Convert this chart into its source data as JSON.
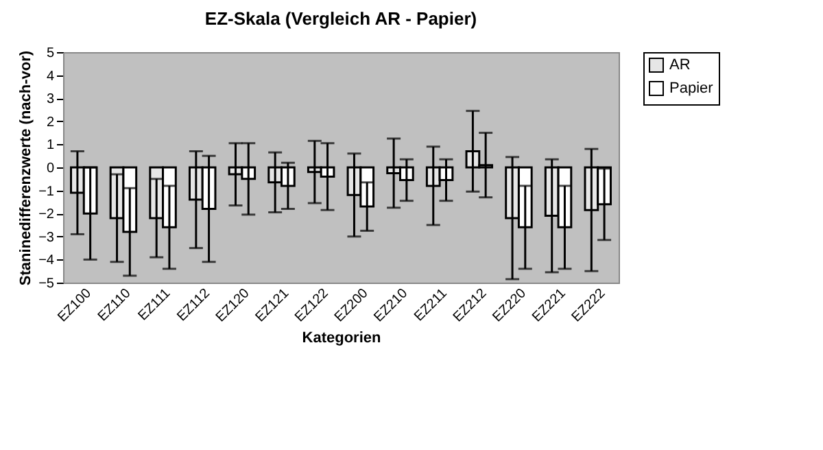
{
  "chart_data": {
    "type": "bar",
    "title": "EZ-Skala (Vergleich AR  - Papier)",
    "xlabel": "Kategorien",
    "ylabel": "Staninedifferenzwerte (nach-vor)",
    "categories": [
      "EZ100",
      "EZ110",
      "EZ111",
      "EZ112",
      "EZ120",
      "EZ121",
      "EZ122",
      "EZ200",
      "EZ210",
      "EZ211",
      "EZ212",
      "EZ220",
      "EZ221",
      "EZ222"
    ],
    "series": [
      {
        "name": "AR",
        "color": "#e6e6e6",
        "values": [
          -1.1,
          -2.2,
          -2.2,
          -1.4,
          -0.3,
          -0.65,
          -0.2,
          -1.2,
          -0.25,
          -0.8,
          0.7,
          -2.2,
          -2.1,
          -1.85
        ],
        "errors": [
          1.8,
          1.9,
          1.7,
          2.1,
          1.35,
          1.3,
          1.35,
          1.8,
          1.5,
          1.7,
          1.75,
          2.65,
          2.45,
          2.65
        ]
      },
      {
        "name": "Papier",
        "color": "#ffffff",
        "values": [
          -2.0,
          -2.8,
          -2.6,
          -1.8,
          -0.5,
          -0.8,
          -0.4,
          -1.7,
          -0.55,
          -0.55,
          0.1,
          -2.6,
          -2.6,
          -1.6
        ],
        "errors": [
          2.0,
          1.9,
          1.8,
          2.3,
          1.55,
          1.0,
          1.45,
          1.05,
          0.9,
          0.9,
          1.4,
          1.8,
          1.8,
          1.55
        ]
      }
    ],
    "ylim": [
      -5,
      5
    ],
    "yticks": [
      -5,
      -4,
      -3,
      -2,
      -1,
      0,
      1,
      2,
      3,
      4,
      5
    ],
    "grid": false,
    "legend": "right"
  }
}
